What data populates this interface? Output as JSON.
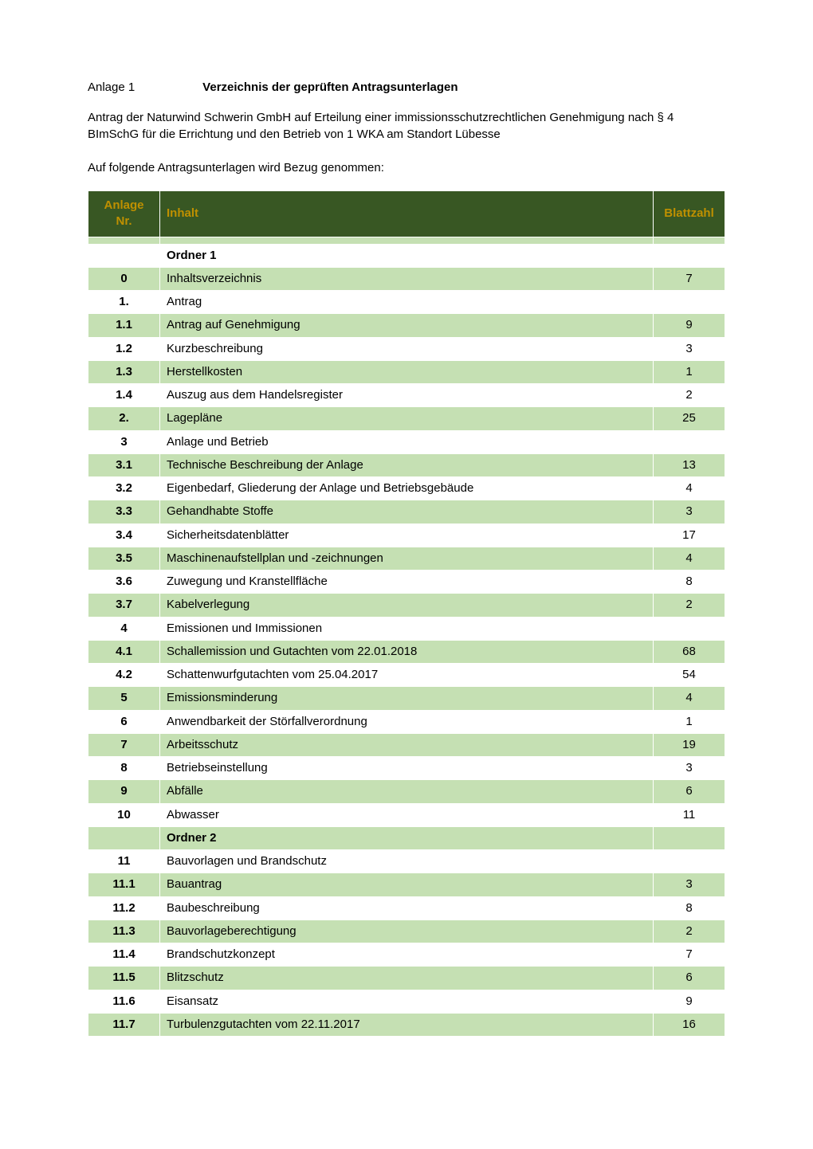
{
  "header": {
    "anlage_label": "Anlage 1",
    "title": "Verzeichnis der geprüften Antragsunterlagen",
    "intro": "Antrag der Naturwind Schwerin GmbH auf Erteilung einer immissionsschutzrechtlichen Genehmigung nach § 4 BImSchG für die Errichtung und den Betrieb von 1 WKA am Standort Lübesse",
    "subintro": "Auf folgende Antragsunterlagen wird Bezug genommen:"
  },
  "table": {
    "header_bg": "#385723",
    "header_fg": "#bf9000",
    "row_alt_bg": "#c5e0b3",
    "row_bg": "#ffffff",
    "border_color": "#ffffff",
    "columns": {
      "nr": "Anlage Nr.",
      "inhalt": "Inhalt",
      "blatt": "Blattzahl"
    },
    "rows": [
      {
        "nr": "",
        "inhalt": "",
        "blatt": "",
        "alt": true,
        "bold": false
      },
      {
        "nr": "",
        "inhalt": "Ordner 1",
        "blatt": "",
        "alt": false,
        "bold": true
      },
      {
        "nr": "0",
        "inhalt": "Inhaltsverzeichnis",
        "blatt": "7",
        "alt": true,
        "bold": false
      },
      {
        "nr": "1.",
        "inhalt": "Antrag",
        "blatt": "",
        "alt": false,
        "bold": false
      },
      {
        "nr": "1.1",
        "inhalt": "Antrag auf Genehmigung",
        "blatt": "9",
        "alt": true,
        "bold": false
      },
      {
        "nr": "1.2",
        "inhalt": "Kurzbeschreibung",
        "blatt": "3",
        "alt": false,
        "bold": false
      },
      {
        "nr": "1.3",
        "inhalt": "Herstellkosten",
        "blatt": "1",
        "alt": true,
        "bold": false
      },
      {
        "nr": "1.4",
        "inhalt": "Auszug aus dem Handelsregister",
        "blatt": "2",
        "alt": false,
        "bold": false
      },
      {
        "nr": "2.",
        "inhalt": "Lagepläne",
        "blatt": "25",
        "alt": true,
        "bold": false
      },
      {
        "nr": "3",
        "inhalt": "Anlage und Betrieb",
        "blatt": "",
        "alt": false,
        "bold": false
      },
      {
        "nr": "3.1",
        "inhalt": "Technische Beschreibung der Anlage",
        "blatt": "13",
        "alt": true,
        "bold": false
      },
      {
        "nr": "3.2",
        "inhalt": "Eigenbedarf, Gliederung der Anlage und Betriebsgebäude",
        "blatt": "4",
        "alt": false,
        "bold": false
      },
      {
        "nr": "3.3",
        "inhalt": "Gehandhabte Stoffe",
        "blatt": "3",
        "alt": true,
        "bold": false
      },
      {
        "nr": "3.4",
        "inhalt": "Sicherheitsdatenblätter",
        "blatt": "17",
        "alt": false,
        "bold": false
      },
      {
        "nr": "3.5",
        "inhalt": "Maschinenaufstellplan und -zeichnungen",
        "blatt": "4",
        "alt": true,
        "bold": false
      },
      {
        "nr": "3.6",
        "inhalt": "Zuwegung und Kranstellfläche",
        "blatt": "8",
        "alt": false,
        "bold": false
      },
      {
        "nr": "3.7",
        "inhalt": "Kabelverlegung",
        "blatt": "2",
        "alt": true,
        "bold": false
      },
      {
        "nr": "4",
        "inhalt": "Emissionen und Immissionen",
        "blatt": "",
        "alt": false,
        "bold": false
      },
      {
        "nr": "4.1",
        "inhalt": "Schallemission und Gutachten vom 22.01.2018",
        "blatt": "68",
        "alt": true,
        "bold": false
      },
      {
        "nr": "4.2",
        "inhalt": "Schattenwurfgutachten vom 25.04.2017",
        "blatt": "54",
        "alt": false,
        "bold": false
      },
      {
        "nr": "5",
        "inhalt": "Emissionsminderung",
        "blatt": "4",
        "alt": true,
        "bold": false
      },
      {
        "nr": "6",
        "inhalt": "Anwendbarkeit der Störfallverordnung",
        "blatt": "1",
        "alt": false,
        "bold": false
      },
      {
        "nr": "7",
        "inhalt": "Arbeitsschutz",
        "blatt": "19",
        "alt": true,
        "bold": false
      },
      {
        "nr": "8",
        "inhalt": "Betriebseinstellung",
        "blatt": "3",
        "alt": false,
        "bold": false
      },
      {
        "nr": "9",
        "inhalt": "Abfälle",
        "blatt": "6",
        "alt": true,
        "bold": false
      },
      {
        "nr": "10",
        "inhalt": "Abwasser",
        "blatt": "11",
        "alt": false,
        "bold": false
      },
      {
        "nr": "",
        "inhalt": "Ordner 2",
        "blatt": "",
        "alt": true,
        "bold": true
      },
      {
        "nr": "11",
        "inhalt": "Bauvorlagen und Brandschutz",
        "blatt": "",
        "alt": false,
        "bold": false
      },
      {
        "nr": "11.1",
        "inhalt": "Bauantrag",
        "blatt": "3",
        "alt": true,
        "bold": false
      },
      {
        "nr": "11.2",
        "inhalt": "Baubeschreibung",
        "blatt": "8",
        "alt": false,
        "bold": false
      },
      {
        "nr": "11.3",
        "inhalt": "Bauvorlageberechtigung",
        "blatt": "2",
        "alt": true,
        "bold": false
      },
      {
        "nr": "11.4",
        "inhalt": "Brandschutzkonzept",
        "blatt": "7",
        "alt": false,
        "bold": false
      },
      {
        "nr": "11.5",
        "inhalt": "Blitzschutz",
        "blatt": "6",
        "alt": true,
        "bold": false
      },
      {
        "nr": "11.6",
        "inhalt": "Eisansatz",
        "blatt": "9",
        "alt": false,
        "bold": false
      },
      {
        "nr": "11.7",
        "inhalt": "Turbulenzgutachten vom 22.11.2017",
        "blatt": "16",
        "alt": true,
        "bold": false
      }
    ]
  }
}
